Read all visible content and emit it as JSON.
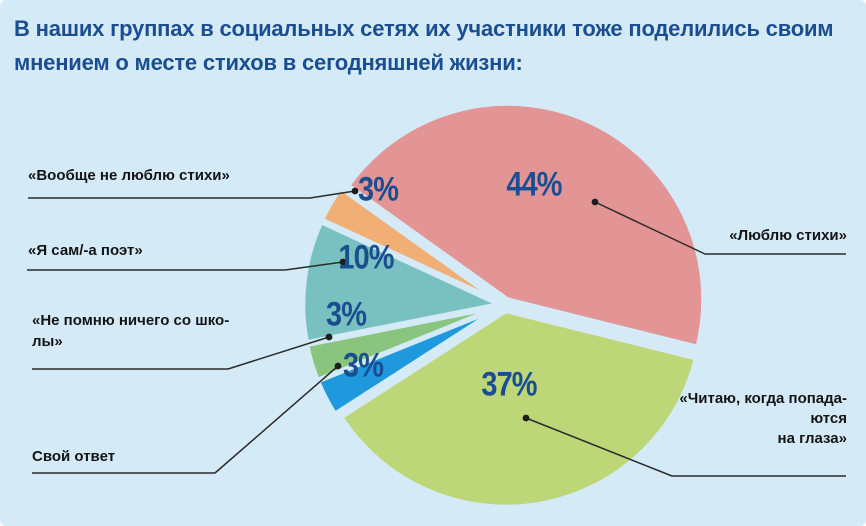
{
  "title": {
    "line1": "В наших группах в социальных сетях их участники тоже поделились своим",
    "line2": "мнением о месте стихов в сегодняшней жизни:"
  },
  "colors": {
    "background": "#d4eaf7",
    "title_text": "#1b4e91",
    "percent_text": "#1b4e91",
    "callout_text": "#141414",
    "leader_line": "#2b2b2b",
    "leader_dot": "#1d1d1d"
  },
  "chart_data": {
    "type": "pie",
    "title": "В наших группах в социальных сетях их участники тоже поделились своим мнением о месте стихов в сегодняшней жизни:",
    "start_angle_deg": -144.4,
    "legend_position": "callouts",
    "slices": [
      {
        "label": "«Люблю стихи»",
        "value": 44,
        "pct": "44%",
        "color": "#e39596"
      },
      {
        "label": "«Читаю, когда попадаются на глаза»",
        "value": 37,
        "pct": "37%",
        "color": "#bdd677"
      },
      {
        "label": "Свой ответ",
        "value": 3,
        "pct": "3%",
        "color": "#2098dd"
      },
      {
        "label": "«Не помню ничего со школы»",
        "value": 3,
        "pct": "3%",
        "color": "#8ac580"
      },
      {
        "label": "«Я сам/-а поэт»",
        "value": 10,
        "pct": "10%",
        "color": "#78c1c0"
      },
      {
        "label": "«Вообще не люблю стихи»",
        "value": 3,
        "pct": "3%",
        "color": "#f1af76"
      }
    ]
  },
  "callouts": {
    "orange": {
      "lines": [
        "«Вообще не люблю стихи»"
      ]
    },
    "teal": {
      "lines": [
        "«Я сам/-а поэт»"
      ]
    },
    "green": {
      "lines": [
        "«Не помню ничего со шко-",
        "лы»"
      ]
    },
    "blue": {
      "lines": [
        "Свой ответ"
      ]
    },
    "pink": {
      "lines": [
        "«Люблю стихи»"
      ]
    },
    "lime": {
      "lines": [
        "«Читаю, когда попада-",
        "ются",
        "на глаза»"
      ]
    }
  }
}
